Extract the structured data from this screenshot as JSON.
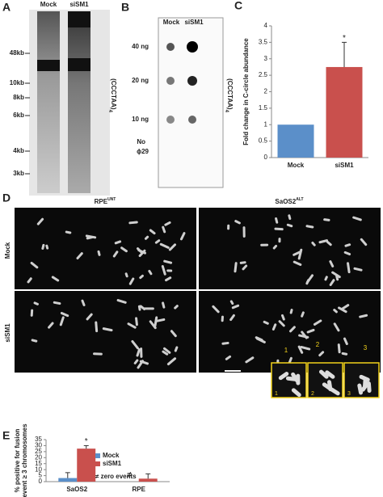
{
  "panels": {
    "a": {
      "letter": "A",
      "lanes": [
        "Mock",
        "siSM1"
      ],
      "markers": [
        "48kb",
        "10kb",
        "8kb",
        "6kb",
        "4kb",
        "3kb"
      ],
      "probe": {
        "text": "(CCCTAA)",
        "sub": "4"
      }
    },
    "b": {
      "letter": "B",
      "lanes": [
        "Mock",
        "siSM1"
      ],
      "rows": [
        "40 ng",
        "20 ng",
        "10 ng",
        "No",
        "ϕ29"
      ],
      "probe": {
        "text": "(CCCTAA)",
        "sub": "4"
      }
    },
    "c": {
      "letter": "C"
    },
    "d": {
      "letter": "D",
      "columns": [
        {
          "name": "RPE",
          "sup": "UNT"
        },
        {
          "name": "SaOS2",
          "sup": "ALT"
        }
      ],
      "rows": [
        "Mock",
        "siSM1"
      ],
      "insets": [
        "1",
        "2",
        "3"
      ]
    },
    "e": {
      "letter": "E"
    }
  },
  "chart_data": [
    {
      "type": "bar",
      "ylabel": [
        "Fold change in C-circle abundance"
      ],
      "categories": [
        "Mock",
        "siSM1"
      ],
      "values": [
        1,
        2.75
      ],
      "errors": [
        null,
        0.75
      ],
      "colors": [
        "#5b8fc9",
        "#c9504d"
      ],
      "significance": [
        null,
        "*"
      ],
      "ylim": [
        0,
        4
      ],
      "yticks": [
        0,
        0.5,
        1,
        1.5,
        2,
        2.5,
        3,
        3.5,
        4
      ]
    },
    {
      "type": "bar",
      "ylabel": [
        "% positive for fusion",
        "event ≥ 3 chromosomes"
      ],
      "categories": [
        "SaOS2",
        "RPE"
      ],
      "series": [
        {
          "name": "Mock",
          "color": "#5b8fc9",
          "values": [
            3,
            0
          ],
          "errors": [
            4.5,
            null
          ],
          "markers": [
            null,
            "≠"
          ]
        },
        {
          "name": "siSM1",
          "color": "#c9504d",
          "values": [
            27.5,
            2.5
          ],
          "errors": [
            2.5,
            4
          ],
          "significance": [
            "*",
            null
          ]
        }
      ],
      "legend_note": "≠ zero events",
      "ylim": [
        0,
        35
      ],
      "yticks": [
        0,
        5,
        10,
        15,
        20,
        25,
        30,
        35
      ]
    }
  ]
}
